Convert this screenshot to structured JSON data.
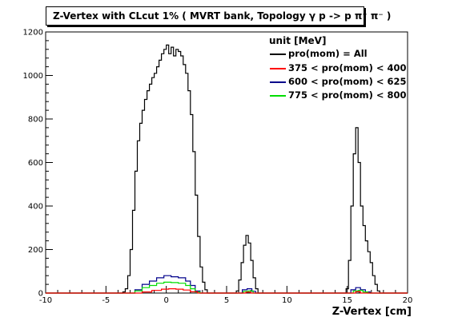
{
  "chart_data": {
    "type": "line",
    "title": "Z-Vertex with CLcut 1% ( MVRT bank, Topology γ p -> p π⁺ π⁻ )",
    "xlabel": "Z-Vertex [cm]",
    "ylabel": "",
    "xlim": [
      -10,
      20
    ],
    "ylim": [
      0,
      1200
    ],
    "x_ticks": [
      -10,
      -5,
      0,
      5,
      10,
      15,
      20
    ],
    "y_ticks": [
      0,
      200,
      400,
      600,
      800,
      1000,
      1200
    ],
    "x_tick_labels": [
      "-10",
      "-5",
      "0",
      "5",
      "10",
      "15",
      "20"
    ],
    "y_tick_labels": [
      "0",
      "200",
      "400",
      "600",
      "800",
      "1000",
      "1200"
    ],
    "legend_title": "unit [MeV]",
    "legend_position": "top-right",
    "grid": false,
    "series": [
      {
        "name": "pro(mom) = All",
        "color": "#000000",
        "points": [
          [
            -10,
            0
          ],
          [
            -4,
            0
          ],
          [
            -3.6,
            5
          ],
          [
            -3.4,
            20
          ],
          [
            -3.2,
            80
          ],
          [
            -3.0,
            200
          ],
          [
            -2.8,
            380
          ],
          [
            -2.6,
            560
          ],
          [
            -2.4,
            700
          ],
          [
            -2.2,
            780
          ],
          [
            -2.0,
            840
          ],
          [
            -1.8,
            890
          ],
          [
            -1.6,
            930
          ],
          [
            -1.4,
            960
          ],
          [
            -1.2,
            990
          ],
          [
            -1.0,
            1010
          ],
          [
            -0.8,
            1040
          ],
          [
            -0.6,
            1070
          ],
          [
            -0.4,
            1100
          ],
          [
            -0.2,
            1120
          ],
          [
            0,
            1140
          ],
          [
            0.2,
            1100
          ],
          [
            0.4,
            1130
          ],
          [
            0.6,
            1090
          ],
          [
            0.8,
            1120
          ],
          [
            1.0,
            1110
          ],
          [
            1.2,
            1090
          ],
          [
            1.4,
            1050
          ],
          [
            1.6,
            1010
          ],
          [
            1.8,
            930
          ],
          [
            2.0,
            820
          ],
          [
            2.2,
            650
          ],
          [
            2.4,
            450
          ],
          [
            2.6,
            260
          ],
          [
            2.8,
            120
          ],
          [
            3.0,
            50
          ],
          [
            3.2,
            15
          ],
          [
            3.4,
            0
          ],
          [
            5.5,
            0
          ],
          [
            5.8,
            10
          ],
          [
            6.0,
            60
          ],
          [
            6.2,
            140
          ],
          [
            6.4,
            220
          ],
          [
            6.6,
            265
          ],
          [
            6.8,
            230
          ],
          [
            7.0,
            150
          ],
          [
            7.2,
            70
          ],
          [
            7.4,
            20
          ],
          [
            7.6,
            0
          ],
          [
            14.6,
            0
          ],
          [
            14.9,
            20
          ],
          [
            15.1,
            150
          ],
          [
            15.3,
            400
          ],
          [
            15.5,
            640
          ],
          [
            15.7,
            760
          ],
          [
            15.9,
            600
          ],
          [
            16.1,
            400
          ],
          [
            16.3,
            310
          ],
          [
            16.5,
            240
          ],
          [
            16.7,
            190
          ],
          [
            16.9,
            140
          ],
          [
            17.1,
            80
          ],
          [
            17.3,
            40
          ],
          [
            17.5,
            10
          ],
          [
            17.7,
            0
          ],
          [
            20,
            0
          ]
        ]
      },
      {
        "name": "375 < pro(mom) < 400",
        "color": "#ff0000",
        "points": [
          [
            -10,
            0
          ],
          [
            -2.6,
            0
          ],
          [
            -2.0,
            5
          ],
          [
            -1.2,
            12
          ],
          [
            -0.4,
            18
          ],
          [
            0.2,
            20
          ],
          [
            0.8,
            18
          ],
          [
            1.4,
            14
          ],
          [
            2.0,
            6
          ],
          [
            2.6,
            0
          ],
          [
            6.2,
            0
          ],
          [
            6.6,
            4
          ],
          [
            7.0,
            0
          ],
          [
            15.3,
            0
          ],
          [
            15.7,
            6
          ],
          [
            16.1,
            0
          ],
          [
            20,
            0
          ]
        ]
      },
      {
        "name": "600 < pro(mom) < 625",
        "color": "#00008b",
        "points": [
          [
            -10,
            0
          ],
          [
            -3.0,
            0
          ],
          [
            -2.6,
            15
          ],
          [
            -2.0,
            40
          ],
          [
            -1.4,
            55
          ],
          [
            -0.8,
            70
          ],
          [
            -0.2,
            80
          ],
          [
            0.4,
            75
          ],
          [
            1.0,
            70
          ],
          [
            1.6,
            55
          ],
          [
            2.0,
            35
          ],
          [
            2.4,
            10
          ],
          [
            2.8,
            0
          ],
          [
            5.9,
            0
          ],
          [
            6.3,
            15
          ],
          [
            6.7,
            20
          ],
          [
            7.1,
            8
          ],
          [
            7.4,
            0
          ],
          [
            14.9,
            0
          ],
          [
            15.3,
            15
          ],
          [
            15.7,
            25
          ],
          [
            16.1,
            15
          ],
          [
            16.5,
            5
          ],
          [
            16.9,
            0
          ],
          [
            20,
            0
          ]
        ]
      },
      {
        "name": "775 < pro(mom) < 800",
        "color": "#00dd00",
        "points": [
          [
            -10,
            0
          ],
          [
            -3.0,
            0
          ],
          [
            -2.6,
            10
          ],
          [
            -2.0,
            25
          ],
          [
            -1.4,
            35
          ],
          [
            -0.8,
            45
          ],
          [
            -0.2,
            50
          ],
          [
            0.4,
            48
          ],
          [
            1.0,
            45
          ],
          [
            1.6,
            35
          ],
          [
            2.0,
            20
          ],
          [
            2.4,
            5
          ],
          [
            2.8,
            0
          ],
          [
            6.0,
            0
          ],
          [
            6.4,
            8
          ],
          [
            6.8,
            10
          ],
          [
            7.2,
            0
          ],
          [
            15.1,
            0
          ],
          [
            15.5,
            10
          ],
          [
            15.9,
            12
          ],
          [
            16.3,
            5
          ],
          [
            16.7,
            0
          ],
          [
            20,
            0
          ]
        ]
      }
    ]
  }
}
